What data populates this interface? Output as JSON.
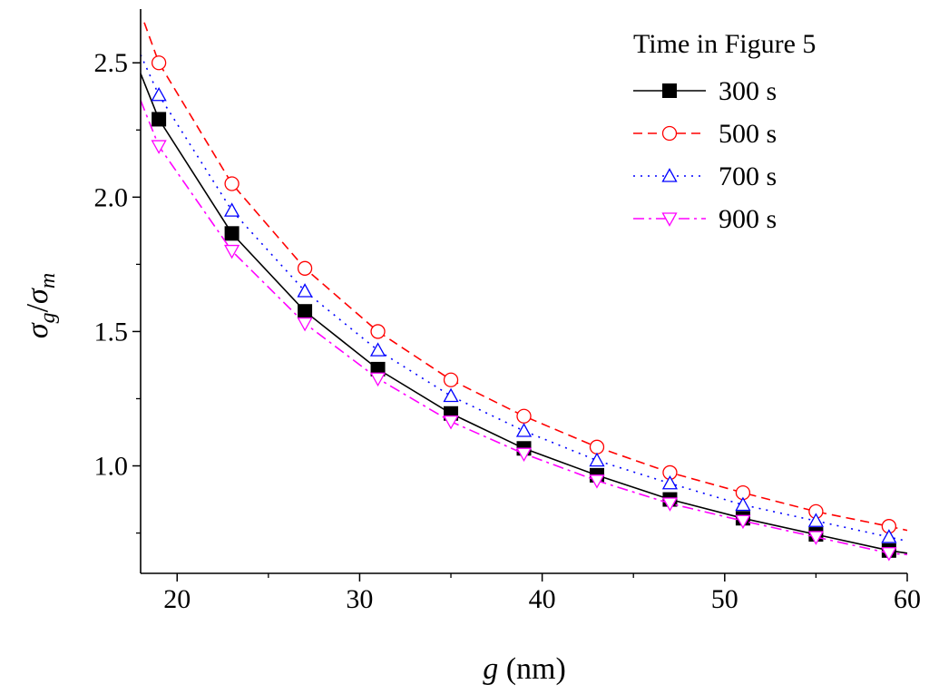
{
  "chart_data": {
    "type": "line",
    "title": "",
    "xlabel_var": "g",
    "xlabel_unit": " (nm)",
    "ylabel_num": "σ",
    "ylabel_num_sub": "g",
    "ylabel_slash": "/",
    "ylabel_den": "σ",
    "ylabel_den_sub": "m",
    "xlim": [
      18,
      60
    ],
    "ylim": [
      0.6,
      2.7
    ],
    "xticks": [
      20,
      30,
      40,
      50,
      60
    ],
    "xtick_labels": [
      "20",
      "30",
      "40",
      "50",
      "60"
    ],
    "xminor": [
      25,
      35,
      45,
      55
    ],
    "yticks": [
      1.0,
      1.5,
      2.0,
      2.5
    ],
    "ytick_labels": [
      "1.0",
      "1.5",
      "2.0",
      "2.5"
    ],
    "yminor": [
      0.75,
      1.25,
      1.75,
      2.25
    ],
    "grid": false,
    "legend_title": "Time in Figure 5",
    "legend_position": "top-right",
    "marker_x": [
      19,
      23,
      27,
      31,
      35,
      39,
      43,
      47,
      51,
      55,
      59
    ],
    "series": [
      {
        "name": "300 s",
        "color": "#000000",
        "dash": "solid",
        "marker": "square-filled",
        "values": [
          2.29,
          1.865,
          1.575,
          1.36,
          1.195,
          1.065,
          0.965,
          0.875,
          0.805,
          0.745,
          0.685
        ],
        "curve_start": [
          18,
          2.46
        ],
        "curve_end": [
          60,
          0.675
        ]
      },
      {
        "name": "500 s",
        "color": "#ff0000",
        "dash": "dashed",
        "marker": "circle-open",
        "values": [
          2.5,
          2.05,
          1.735,
          1.5,
          1.32,
          1.185,
          1.07,
          0.975,
          0.9,
          0.83,
          0.775
        ],
        "curve_start": [
          18.2,
          2.65
        ],
        "curve_end": [
          60,
          0.76
        ]
      },
      {
        "name": "700 s",
        "color": "#0000ff",
        "dash": "dotted",
        "marker": "triangle-up-open",
        "values": [
          2.38,
          1.95,
          1.65,
          1.43,
          1.26,
          1.13,
          1.02,
          0.935,
          0.855,
          0.795,
          0.735
        ],
        "curve_start": [
          18,
          2.53
        ],
        "curve_end": [
          60,
          0.72
        ]
      },
      {
        "name": "900 s",
        "color": "#ff00ff",
        "dash": "dash-dot",
        "marker": "triangle-down-open",
        "values": [
          2.19,
          1.8,
          1.53,
          1.325,
          1.165,
          1.045,
          0.945,
          0.86,
          0.795,
          0.735,
          0.675
        ],
        "curve_start": [
          18,
          2.36
        ],
        "curve_end": [
          60,
          0.67
        ]
      }
    ]
  }
}
